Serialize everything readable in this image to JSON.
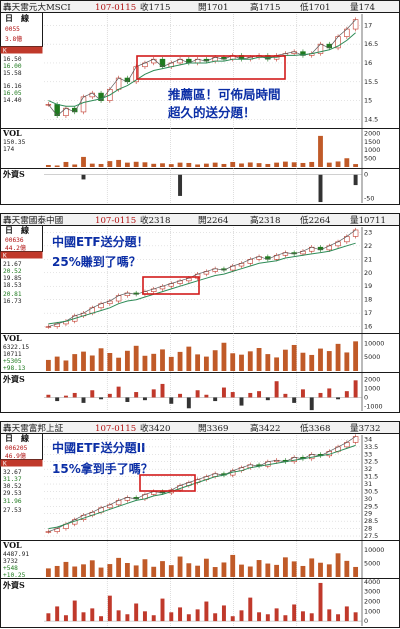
{
  "colors": {
    "border": "#1a1a1a",
    "redBox": "#d21c1c",
    "note": "#0b2ea6",
    "bar": "#c05a28",
    "grid": "#bdbdbd"
  },
  "panels": [
    {
      "header": {
        "name": "轟天雷元大MSCI",
        "date": "107-0115",
        "close": "收1715",
        "open": "開1701",
        "high": "高1715",
        "low": "低1701",
        "vol": "量174"
      },
      "side": {
        "freq": "日　線",
        "code": "0055",
        "cap": "3.8億",
        "k_tag": "K",
        "price_levels": [
          "16.50",
          "16.00",
          "15.58",
          "16.16",
          "16.05",
          "14.40"
        ]
      },
      "vol_label": "VOL",
      "vol_values": [
        "150.35",
        "174"
      ],
      "foreign_label": "外資S",
      "note_lines": [
        "推薦區！可佈局時間",
        "超久的送分題！"
      ],
      "chart_data": {
        "type": "line",
        "title": "",
        "xlabel": "",
        "ylabel": "",
        "price_ticks": [
          "17",
          "16.5",
          "16",
          "15.5",
          "15",
          "14.5"
        ],
        "ylim": [
          14.3,
          17.3
        ],
        "close": [
          14.9,
          14.6,
          14.8,
          14.7,
          15.1,
          15.2,
          15.0,
          15.3,
          15.6,
          15.5,
          15.9,
          16.0,
          16.1,
          15.9,
          16.0,
          16.1,
          16.0,
          16.1,
          16.05,
          16.15,
          16.1,
          16.2,
          16.1,
          16.15,
          16.2,
          16.1,
          16.2,
          16.25,
          16.3,
          16.2,
          16.25,
          16.5,
          16.4,
          16.7,
          16.9,
          17.15
        ],
        "ma": [
          15.0,
          14.9,
          14.85,
          14.85,
          14.95,
          15.0,
          15.05,
          15.15,
          15.3,
          15.4,
          15.55,
          15.7,
          15.8,
          15.85,
          15.9,
          15.95,
          16.0,
          16.0,
          16.0,
          16.05,
          16.05,
          16.1,
          16.1,
          16.1,
          16.15,
          16.15,
          16.15,
          16.2,
          16.2,
          16.22,
          16.25,
          16.3,
          16.35,
          16.45,
          16.6,
          16.8
        ],
        "vol_ticks": [
          "2000",
          "1500",
          "1000",
          "500"
        ],
        "vol_max": 2200,
        "volume": [
          120,
          90,
          300,
          150,
          600,
          200,
          180,
          350,
          420,
          260,
          310,
          280,
          190,
          220,
          170,
          260,
          240,
          150,
          200,
          260,
          180,
          300,
          210,
          270,
          230,
          180,
          260,
          320,
          280,
          240,
          300,
          1850,
          260,
          330,
          520,
          174
        ],
        "foreign_ticks": [
          "0",
          "-50"
        ],
        "foreign_range": [
          -60,
          10
        ],
        "foreign": [
          0,
          0,
          0,
          0,
          -10,
          0,
          0,
          0,
          0,
          0,
          0,
          0,
          0,
          0,
          0,
          -45,
          0,
          0,
          0,
          0,
          0,
          0,
          0,
          0,
          0,
          0,
          0,
          0,
          0,
          0,
          0,
          -58,
          0,
          0,
          0,
          -22
        ]
      }
    },
    {
      "header": {
        "name": "轟天雷國泰中國",
        "date": "107-0115",
        "close": "收2318",
        "open": "開2264",
        "high": "高2318",
        "low": "低2264",
        "vol": "量10711"
      },
      "side": {
        "freq": "日　線",
        "code": "00636",
        "cap": "44.2億",
        "k_tag": "K",
        "price_levels": [
          "21.67",
          "20.52",
          "19.85",
          "18.53",
          "20.81",
          "16.73"
        ]
      },
      "vol_label": "VOL",
      "vol_values": [
        "6322.15",
        "10711",
        "+5305",
        "+98.13"
      ],
      "foreign_label": "外資S",
      "note_lines": [
        "中國ETF送分題！",
        "25%賺到了嗎？"
      ],
      "chart_data": {
        "type": "line",
        "title": "",
        "xlabel": "",
        "ylabel": "",
        "price_ticks": [
          "23",
          "22",
          "21",
          "20",
          "19",
          "18",
          "17",
          "16"
        ],
        "ylim": [
          15.6,
          23.4
        ],
        "close": [
          16.0,
          16.2,
          16.4,
          16.8,
          17.0,
          17.4,
          17.7,
          17.9,
          18.3,
          18.5,
          18.4,
          18.6,
          18.8,
          19.0,
          19.2,
          19.4,
          19.6,
          19.9,
          20.1,
          20.3,
          20.2,
          20.5,
          20.7,
          21.0,
          21.2,
          21.0,
          21.3,
          21.5,
          21.4,
          21.6,
          21.9,
          21.7,
          22.0,
          22.3,
          22.7,
          23.18
        ],
        "ma": [
          16.2,
          16.3,
          16.4,
          16.6,
          16.8,
          17.0,
          17.2,
          17.4,
          17.7,
          17.9,
          18.0,
          18.2,
          18.4,
          18.6,
          18.8,
          19.0,
          19.2,
          19.4,
          19.6,
          19.8,
          19.9,
          20.1,
          20.3,
          20.5,
          20.7,
          20.8,
          20.9,
          21.1,
          21.2,
          21.3,
          21.4,
          21.5,
          21.6,
          21.8,
          22.0,
          22.2
        ],
        "vol_ticks": [
          "10000",
          "5000"
        ],
        "vol_max": 13000,
        "volume": [
          4000,
          5200,
          3800,
          6100,
          7000,
          5600,
          8200,
          6500,
          4800,
          7300,
          9100,
          5500,
          6200,
          7800,
          5100,
          6900,
          8800,
          6000,
          5200,
          7500,
          10200,
          6400,
          5900,
          7100,
          8300,
          6100,
          4900,
          7700,
          9400,
          6600,
          5800,
          8100,
          7200,
          9800,
          6700,
          10711
        ],
        "foreign_ticks": [
          "2000",
          "1000",
          "0",
          "-1000"
        ],
        "foreign_range": [
          -1500,
          2600
        ],
        "foreign": [
          300,
          -400,
          200,
          500,
          -600,
          800,
          -200,
          400,
          1200,
          -500,
          600,
          -300,
          900,
          1500,
          -700,
          400,
          -1200,
          800,
          300,
          -400,
          1100,
          600,
          -900,
          500,
          700,
          -300,
          1800,
          400,
          -600,
          900,
          -1400,
          500,
          1000,
          -200,
          700,
          1900
        ]
      }
    },
    {
      "header": {
        "name": "轟天雷富邦上証",
        "date": "107-0115",
        "close": "收3420",
        "open": "開3369",
        "high": "高3422",
        "low": "低3368",
        "vol": "量3732"
      },
      "side": {
        "freq": "日　線",
        "code": "006205",
        "cap": "46.9億",
        "k_tag": "K",
        "price_levels": [
          "32.67",
          "31.37",
          "30.52",
          "29.53",
          "31.96",
          "27.53"
        ]
      },
      "vol_label": "VOL",
      "vol_values": [
        "4487.91",
        "3732",
        "+548",
        "+10.25"
      ],
      "foreign_label": "外資S",
      "note_lines": [
        "中國ETF送分題II",
        "15%拿到手了嗎？"
      ],
      "chart_data": {
        "type": "line",
        "title": "",
        "xlabel": "",
        "ylabel": "",
        "price_ticks": [
          "34",
          "33.5",
          "33",
          "32.5",
          "32",
          "31.5",
          "31",
          "30.5",
          "30",
          "29.5",
          "29",
          "28.5",
          "28",
          "27.5"
        ],
        "ylim": [
          27.3,
          34.3
        ],
        "close": [
          27.8,
          28.0,
          28.3,
          28.6,
          28.9,
          29.1,
          29.4,
          29.6,
          29.9,
          30.1,
          30.0,
          30.3,
          30.5,
          30.4,
          30.6,
          30.9,
          31.1,
          31.3,
          31.5,
          31.7,
          31.6,
          31.9,
          32.1,
          32.3,
          32.2,
          32.5,
          32.6,
          32.5,
          32.8,
          32.7,
          33.0,
          32.9,
          33.2,
          33.5,
          33.8,
          34.2
        ],
        "ma": [
          28.0,
          28.1,
          28.3,
          28.5,
          28.7,
          28.9,
          29.1,
          29.3,
          29.5,
          29.7,
          29.9,
          30.0,
          30.2,
          30.3,
          30.5,
          30.7,
          30.9,
          31.1,
          31.3,
          31.5,
          31.6,
          31.8,
          31.9,
          32.1,
          32.2,
          32.3,
          32.4,
          32.5,
          32.6,
          32.7,
          32.8,
          32.9,
          33.0,
          33.2,
          33.4,
          33.6
        ],
        "vol_ticks": [
          "10000",
          "5000"
        ],
        "vol_max": 13000,
        "volume": [
          3200,
          4100,
          5600,
          3900,
          4700,
          6200,
          3500,
          4800,
          7100,
          5200,
          4300,
          6600,
          3800,
          5900,
          4400,
          7600,
          5100,
          4200,
          6800,
          3700,
          5400,
          8200,
          4600,
          3900,
          6300,
          5000,
          4500,
          7300,
          5800,
          4100,
          6900,
          5300,
          4700,
          8800,
          6000,
          3732
        ],
        "foreign_ticks": [
          "4000",
          "3000",
          "2000",
          "1000",
          "0"
        ],
        "foreign_range": [
          -500,
          4200
        ],
        "foreign": [
          800,
          1500,
          600,
          2100,
          900,
          1300,
          500,
          2600,
          1100,
          700,
          1800,
          1000,
          600,
          2300,
          900,
          1400,
          700,
          1200,
          2000,
          800,
          1600,
          500,
          1100,
          2400,
          900,
          700,
          1300,
          600,
          1700,
          1000,
          800,
          3900,
          1200,
          700,
          1500,
          900
        ]
      }
    }
  ]
}
